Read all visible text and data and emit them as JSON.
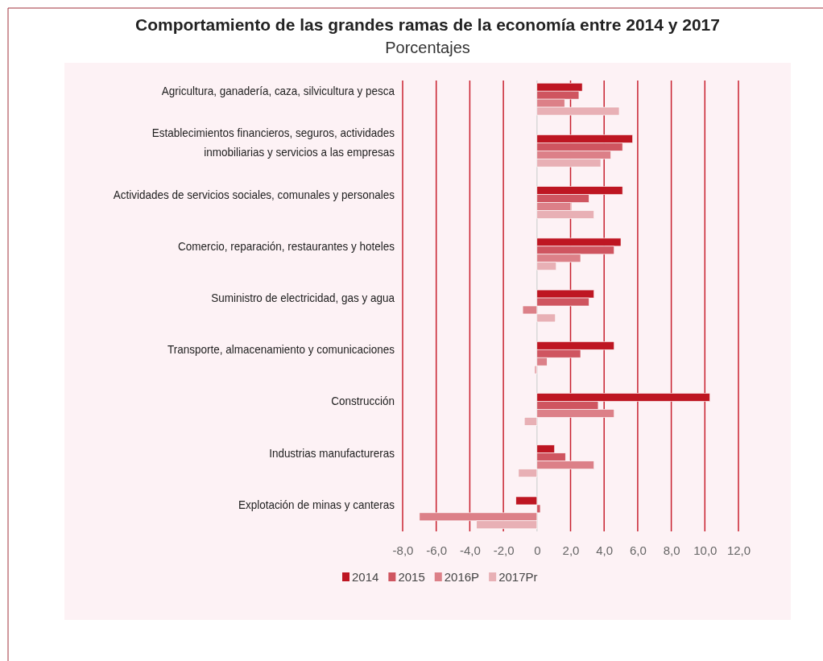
{
  "chart_data": {
    "type": "bar",
    "orientation": "horizontal",
    "title": "Comportamiento de las grandes ramas de la economía entre 2014 y 2017",
    "subtitle": "Porcentajes",
    "categories": [
      "Agricultura, ganadería, caza, silvicultura y pesca",
      "Establecimientos financieros, seguros, actividades inmobiliarias y servicios a las empresas",
      "Actividades de servicios sociales, comunales y personales",
      "Comercio, reparación, restaurantes y hoteles",
      "Suministro de electricidad, gas y agua",
      "Transporte, almacenamiento y comunicaciones",
      "Construcción",
      "Industrias manufactureras",
      "Explotación de minas y canteras"
    ],
    "series": [
      {
        "name": "2014",
        "color": "#be1622",
        "values": [
          2.7,
          5.7,
          5.1,
          5.0,
          3.4,
          4.6,
          10.3,
          1.05,
          -1.25
        ]
      },
      {
        "name": "2015",
        "color": "#cf5560",
        "values": [
          2.5,
          5.1,
          3.1,
          4.6,
          3.1,
          2.6,
          3.65,
          1.7,
          0.2
        ]
      },
      {
        "name": "2016P",
        "color": "#dc8088",
        "values": [
          1.65,
          4.4,
          2.0,
          2.6,
          -0.85,
          0.6,
          4.6,
          3.4,
          -7.0
        ]
      },
      {
        "name": "2017Pr",
        "color": "#e8b0b5",
        "values": [
          4.9,
          3.8,
          3.4,
          1.15,
          1.1,
          -0.15,
          -0.75,
          -1.1,
          -3.6
        ]
      }
    ],
    "xlim": [
      -8,
      12
    ],
    "xticks": [
      {
        "value": -8,
        "label": "-8,0"
      },
      {
        "value": -6,
        "label": "-6,0"
      },
      {
        "value": -4,
        "label": "-4,0"
      },
      {
        "value": -2,
        "label": "-2,0"
      },
      0,
      {
        "value": 2,
        "label": "2,0"
      },
      {
        "value": 4,
        "label": "4,0"
      },
      {
        "value": 6,
        "label": "6,0"
      },
      {
        "value": 8,
        "label": "8,0"
      },
      {
        "value": 10,
        "label": "10,0"
      },
      {
        "value": 12,
        "label": "12,0"
      }
    ],
    "grid": "x",
    "legend": "bottom"
  }
}
